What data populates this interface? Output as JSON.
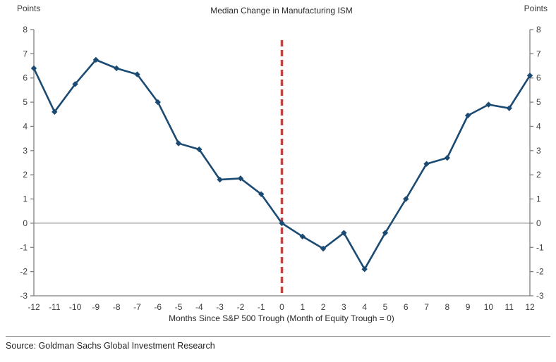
{
  "footer": {
    "source": "Source: Goldman Sachs Global Investment Research"
  },
  "chart_data": {
    "type": "line",
    "title": "Median Change in Manufacturing ISM",
    "xlabel": "Months Since S&P 500 Trough (Month of Equity Trough = 0)",
    "ylabel_left": "Points",
    "ylabel_right": "Points",
    "x": [
      -12,
      -11,
      -10,
      -9,
      -8,
      -7,
      -6,
      -5,
      -4,
      -3,
      -2,
      -1,
      0,
      1,
      2,
      3,
      4,
      5,
      6,
      7,
      8,
      9,
      10,
      11,
      12
    ],
    "series": [
      {
        "name": "Median Change in Manufacturing ISM",
        "values": [
          6.4,
          4.6,
          5.75,
          6.75,
          6.4,
          6.15,
          5.0,
          3.3,
          3.05,
          1.8,
          1.85,
          1.2,
          0.0,
          -0.55,
          -1.05,
          -0.4,
          -1.9,
          -0.4,
          1.0,
          2.45,
          2.7,
          4.45,
          4.9,
          4.75,
          6.1
        ]
      }
    ],
    "xlim": [
      -12,
      12
    ],
    "ylim": [
      -3,
      8
    ],
    "ytick_step": 1,
    "grid": false,
    "legend_position": "none",
    "zero_line": true,
    "vline": {
      "x": 0,
      "style": "dashed"
    },
    "colors": {
      "line": "#1b4a73",
      "marker": "#1b4a73",
      "vline": "#bf4540",
      "axis": "#7f7f7f",
      "zero_line": "#808080",
      "tick_text": "#3d3d3d"
    }
  }
}
